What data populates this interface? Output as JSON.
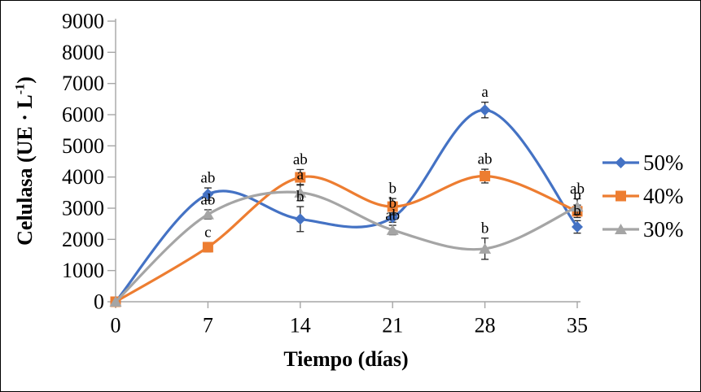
{
  "figure": {
    "background": "#FFFFFF",
    "border_color": "#000000"
  },
  "chart_data": {
    "type": "line",
    "title": "",
    "xlabel": "Tiempo (días)",
    "ylabel": "Celulasa (UE · L⁻¹)",
    "ylabel_parts": {
      "main": "Celulasa (UE · L",
      "sup": "-1",
      "close": ")"
    },
    "x": [
      0,
      7,
      14,
      21,
      28,
      35
    ],
    "x_tick_labels": [
      "0",
      "7",
      "14",
      "21",
      "28",
      "35"
    ],
    "xlim": [
      0,
      35
    ],
    "ylim": [
      0,
      9000
    ],
    "y_tick_step": 1000,
    "y_tick_labels": [
      "0",
      "1000",
      "2000",
      "3000",
      "4000",
      "5000",
      "6000",
      "7000",
      "8000",
      "9000"
    ],
    "grid": false,
    "line_smoothing": true,
    "legend_position": "right",
    "axis_color": "#A6A6A6",
    "error_bar_color": "#262626",
    "label_color": "#000000",
    "series": [
      {
        "name": "50%",
        "color": "#4472C4",
        "marker": "diamond",
        "values": [
          0,
          3450,
          2650,
          2700,
          6150,
          2400
        ],
        "errors": [
          0,
          200,
          400,
          150,
          250,
          200
        ],
        "point_labels": [
          "",
          "ab",
          "b",
          "b",
          "a",
          "b"
        ]
      },
      {
        "name": "40%",
        "color": "#ED7D31",
        "marker": "square",
        "values": [
          0,
          1750,
          3990,
          3050,
          4030,
          2900
        ],
        "errors": [
          0,
          150,
          250,
          260,
          220,
          200
        ],
        "point_labels": [
          "",
          "c",
          "ab",
          "b",
          "ab",
          "b"
        ]
      },
      {
        "name": "30%",
        "color": "#A5A5A5",
        "marker": "triangle",
        "values": [
          0,
          2800,
          3500,
          2300,
          1700,
          3050
        ],
        "errors": [
          0,
          150,
          260,
          150,
          340,
          250
        ],
        "point_labels": [
          "",
          "ab",
          "a",
          "ab",
          "b",
          "ab"
        ]
      }
    ]
  }
}
